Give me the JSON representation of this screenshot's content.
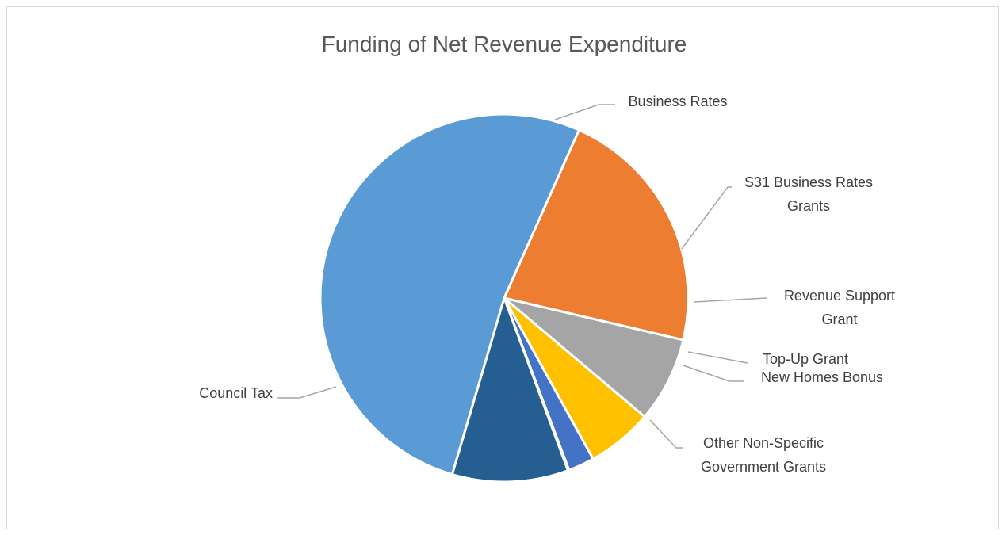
{
  "chart_data": {
    "type": "pie",
    "title": "Funding of Net Revenue Expenditure",
    "legend": "none",
    "slices": [
      {
        "label": "Business Rates",
        "value": 22.0,
        "color": "#ED7D31"
      },
      {
        "label": "S31 Business Rates Grants",
        "value": 7.5,
        "color": "#A5A5A5"
      },
      {
        "label": "Revenue Support Grant",
        "value": 5.8,
        "color": "#FFC000"
      },
      {
        "label": "Top-Up Grant",
        "value": 2.3,
        "color": "#4472C4"
      },
      {
        "label": "New Homes Bonus",
        "value": 0.1,
        "color": "#4472C4"
      },
      {
        "label": "Other Non-Specific Government Grants",
        "value": 10.2,
        "color": "#255E91"
      },
      {
        "label": "Council Tax",
        "value": 52.1,
        "color": "#5B9BD5"
      }
    ]
  }
}
